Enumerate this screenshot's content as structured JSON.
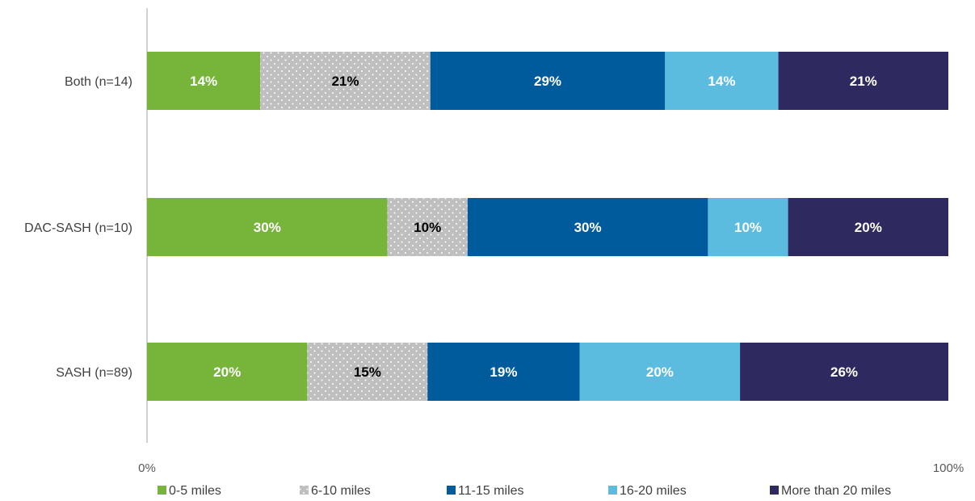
{
  "chart_data": {
    "type": "bar",
    "orientation": "horizontal",
    "stacked": "percent",
    "categories": [
      "Both (n=14)",
      "DAC-SASH (n=10)",
      "SASH (n=89)"
    ],
    "series": [
      {
        "name": "0-5 miles",
        "color": "#76B43A",
        "pattern": "none",
        "label_color": "#ffffff",
        "values": [
          14,
          30,
          20
        ],
        "labels": [
          "14%",
          "30%",
          "20%"
        ]
      },
      {
        "name": "6-10 miles",
        "color": "#BFBFBF",
        "pattern": "dots",
        "label_color": "#000000",
        "values": [
          21,
          10,
          15
        ],
        "labels": [
          "21%",
          "10%",
          "15%"
        ]
      },
      {
        "name": "11-15 miles",
        "color": "#005B9C",
        "pattern": "none",
        "label_color": "#ffffff",
        "values": [
          29,
          30,
          19
        ],
        "labels": [
          "29%",
          "30%",
          "19%"
        ]
      },
      {
        "name": "16-20 miles",
        "color": "#5BBCE0",
        "pattern": "none",
        "label_color": "#ffffff",
        "values": [
          14,
          10,
          20
        ],
        "labels": [
          "14%",
          "10%",
          "20%"
        ]
      },
      {
        "name": "More than 20 miles",
        "color": "#2E2A5F",
        "pattern": "none",
        "label_color": "#ffffff",
        "values": [
          21,
          20,
          26
        ],
        "labels": [
          "21%",
          "20%",
          "26%"
        ]
      }
    ],
    "xlim": [
      0,
      100
    ],
    "x_ticks": [
      "0%",
      "100%"
    ],
    "grid": false,
    "legend_position": "bottom"
  }
}
